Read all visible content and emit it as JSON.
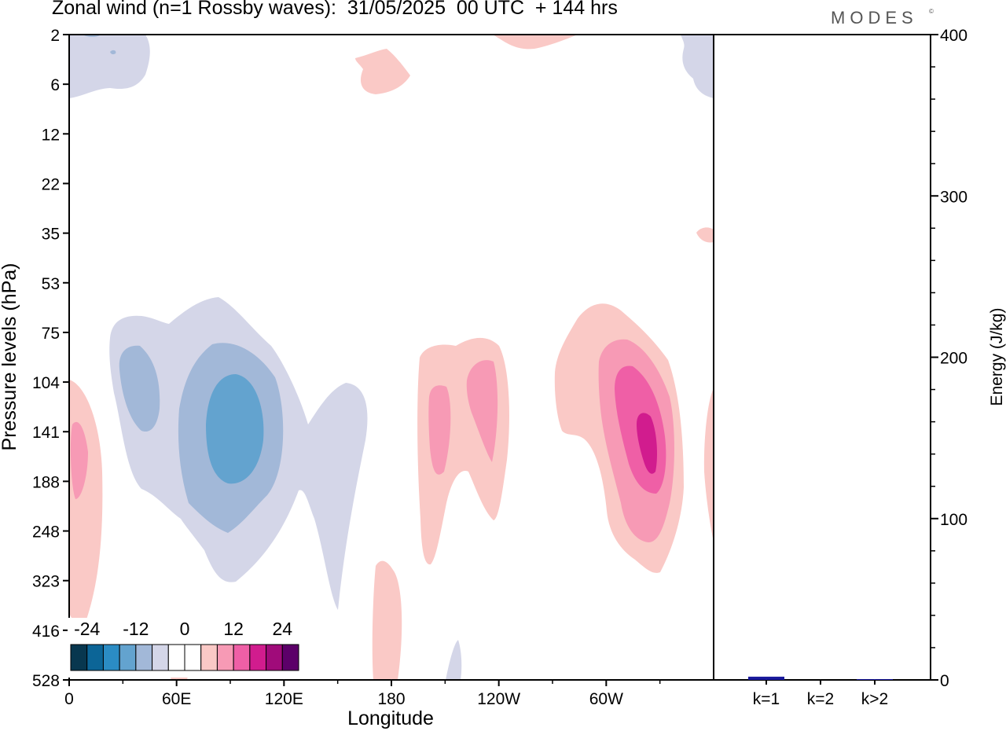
{
  "header": {
    "title": "Zonal wind (n=1 Rossby waves):  31/05/2025  00 UTC  + 144 hrs",
    "brand": "MODES",
    "brand_mark": "©"
  },
  "chart_data": [
    {
      "type": "heatmap",
      "title": "Zonal wind (n=1 Rossby waves):  31/05/2025  00 UTC  + 144 hrs",
      "xlabel": "Longitude",
      "ylabel": "Pressure levels (hPa)",
      "x_ticks": [
        "0",
        "60E",
        "120E",
        "180",
        "120W",
        "60W"
      ],
      "y_ticks": [
        "2",
        "6",
        "12",
        "22",
        "35",
        "53",
        "75",
        "104",
        "141",
        "188",
        "248",
        "323",
        "416",
        "528"
      ],
      "colorbar": {
        "tick_labels": [
          "-24",
          "-12",
          "0",
          "12",
          "24"
        ],
        "colors": [
          "#08374f",
          "#0c6597",
          "#2b8cc4",
          "#63a3cf",
          "#a2b8d8",
          "#d4d6e8",
          "#ffffff",
          "#ffffff",
          "#fac9c6",
          "#f79ab5",
          "#ef5fa6",
          "#d11c8e",
          "#a00b7a",
          "#5c0069"
        ]
      },
      "colors": {
        "neg_weak": "#d4d6e8",
        "neg_mid": "#a2b8d8",
        "neg_strong": "#63a3cf",
        "pos_weak": "#fac9c6",
        "pos_mid": "#f79ab5",
        "pos_strong": "#ef5fa6",
        "pos_max": "#d11c8e"
      }
    },
    {
      "type": "bar",
      "categories": [
        "k=1",
        "k=2",
        "k>2"
      ],
      "values": [
        2,
        0,
        0.5
      ],
      "ylabel": "Energy (J/kg)",
      "ylim": [
        0,
        400
      ],
      "y_ticks": [
        0,
        100,
        200,
        300,
        400
      ],
      "bar_color": "#1a1a9c"
    }
  ]
}
